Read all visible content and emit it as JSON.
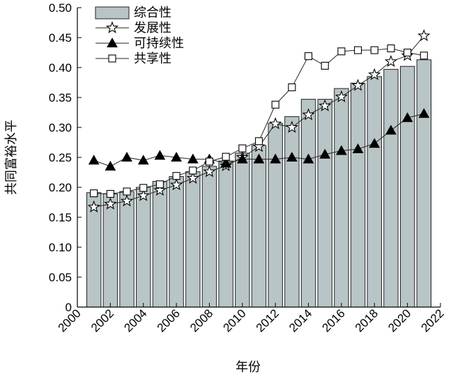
{
  "chart_data": {
    "type": "bar+line",
    "xlabel": "年份",
    "ylabel": "共同富裕水平",
    "xlim": [
      2000,
      2022
    ],
    "ylim": [
      0,
      0.5
    ],
    "x_ticks": [
      "2000",
      "2002",
      "2004",
      "2006",
      "2008",
      "2010",
      "2012",
      "2014",
      "2016",
      "2018",
      "2020",
      "2022"
    ],
    "y_ticks": [
      "0",
      "0.05",
      "0.10",
      "0.15",
      "0.20",
      "0.25",
      "0.30",
      "0.35",
      "0.40",
      "0.45",
      "0.50"
    ],
    "years": [
      2001,
      2002,
      2003,
      2004,
      2005,
      2006,
      2007,
      2008,
      2009,
      2010,
      2011,
      2012,
      2013,
      2014,
      2015,
      2016,
      2017,
      2018,
      2019,
      2020,
      2021
    ],
    "bars": {
      "name": "综合性",
      "values": [
        0.191,
        0.189,
        0.193,
        0.2,
        0.21,
        0.218,
        0.226,
        0.235,
        0.244,
        0.257,
        0.27,
        0.307,
        0.318,
        0.347,
        0.347,
        0.365,
        0.374,
        0.385,
        0.397,
        0.402,
        0.413
      ]
    },
    "series": [
      {
        "name": "发展性",
        "marker": "star",
        "values": [
          0.167,
          0.172,
          0.177,
          0.186,
          0.195,
          0.204,
          0.215,
          0.226,
          0.236,
          0.25,
          0.268,
          0.306,
          0.3,
          0.321,
          0.336,
          0.351,
          0.37,
          0.388,
          0.41,
          0.42,
          0.453
        ]
      },
      {
        "name": "可持续性",
        "marker": "triangle",
        "values": [
          0.245,
          0.235,
          0.25,
          0.245,
          0.253,
          0.25,
          0.247,
          0.247,
          0.24,
          0.247,
          0.247,
          0.247,
          0.25,
          0.247,
          0.255,
          0.261,
          0.264,
          0.273,
          0.295,
          0.316,
          0.323
        ]
      },
      {
        "name": "共享性",
        "marker": "square",
        "values": [
          0.19,
          0.189,
          0.193,
          0.199,
          0.205,
          0.219,
          0.228,
          0.243,
          0.251,
          0.265,
          0.277,
          0.338,
          0.367,
          0.419,
          0.403,
          0.427,
          0.429,
          0.429,
          0.432,
          0.425,
          0.42
        ]
      }
    ],
    "grid": false,
    "legend_position": "top-left"
  }
}
